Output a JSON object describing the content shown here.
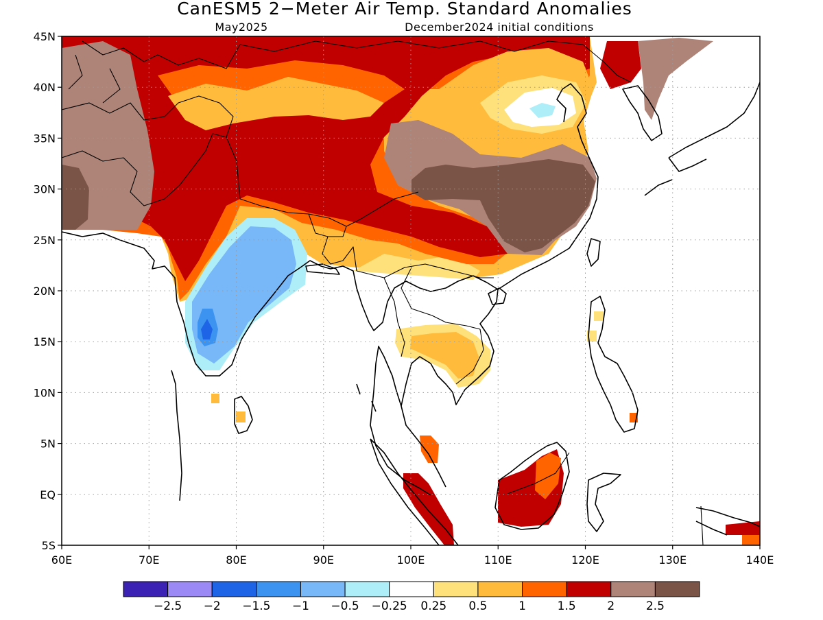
{
  "title": "CanESM5 2−Meter Air Temp. Standard Anomalies",
  "valid_month": "May2025",
  "init_conditions": "December2024 initial conditions",
  "map": {
    "lon_range": [
      60,
      140
    ],
    "lat_range": [
      -5,
      45
    ],
    "lon_ticks": [
      {
        "value": 60,
        "label": "60E"
      },
      {
        "value": 70,
        "label": "70E"
      },
      {
        "value": 80,
        "label": "80E"
      },
      {
        "value": 90,
        "label": "90E"
      },
      {
        "value": 100,
        "label": "100E"
      },
      {
        "value": 110,
        "label": "110E"
      },
      {
        "value": 120,
        "label": "120E"
      },
      {
        "value": 130,
        "label": "130E"
      },
      {
        "value": 140,
        "label": "140E"
      }
    ],
    "lat_ticks": [
      {
        "value": 45,
        "label": "45N"
      },
      {
        "value": 40,
        "label": "40N"
      },
      {
        "value": 35,
        "label": "35N"
      },
      {
        "value": 30,
        "label": "30N"
      },
      {
        "value": 25,
        "label": "25N"
      },
      {
        "value": 20,
        "label": "20N"
      },
      {
        "value": 15,
        "label": "15N"
      },
      {
        "value": 10,
        "label": "10N"
      },
      {
        "value": 5,
        "label": "5N"
      },
      {
        "value": 0,
        "label": "EQ"
      },
      {
        "value": -5,
        "label": "5S"
      }
    ]
  },
  "colorbar": {
    "colors": [
      "#3c22b4",
      "#9b8af5",
      "#1e64e6",
      "#3c94f0",
      "#78b8f8",
      "#aeeef8",
      "#ffffff",
      "#ffe17c",
      "#ffbc3c",
      "#ff6400",
      "#c00000",
      "#ae8478",
      "#7a5446"
    ],
    "labels": [
      "−2.5",
      "−2",
      "−1.5",
      "−1",
      "−0.5",
      "−0.25",
      "0.25",
      "0.5",
      "1",
      "1.5",
      "2",
      "2.5"
    ]
  }
}
